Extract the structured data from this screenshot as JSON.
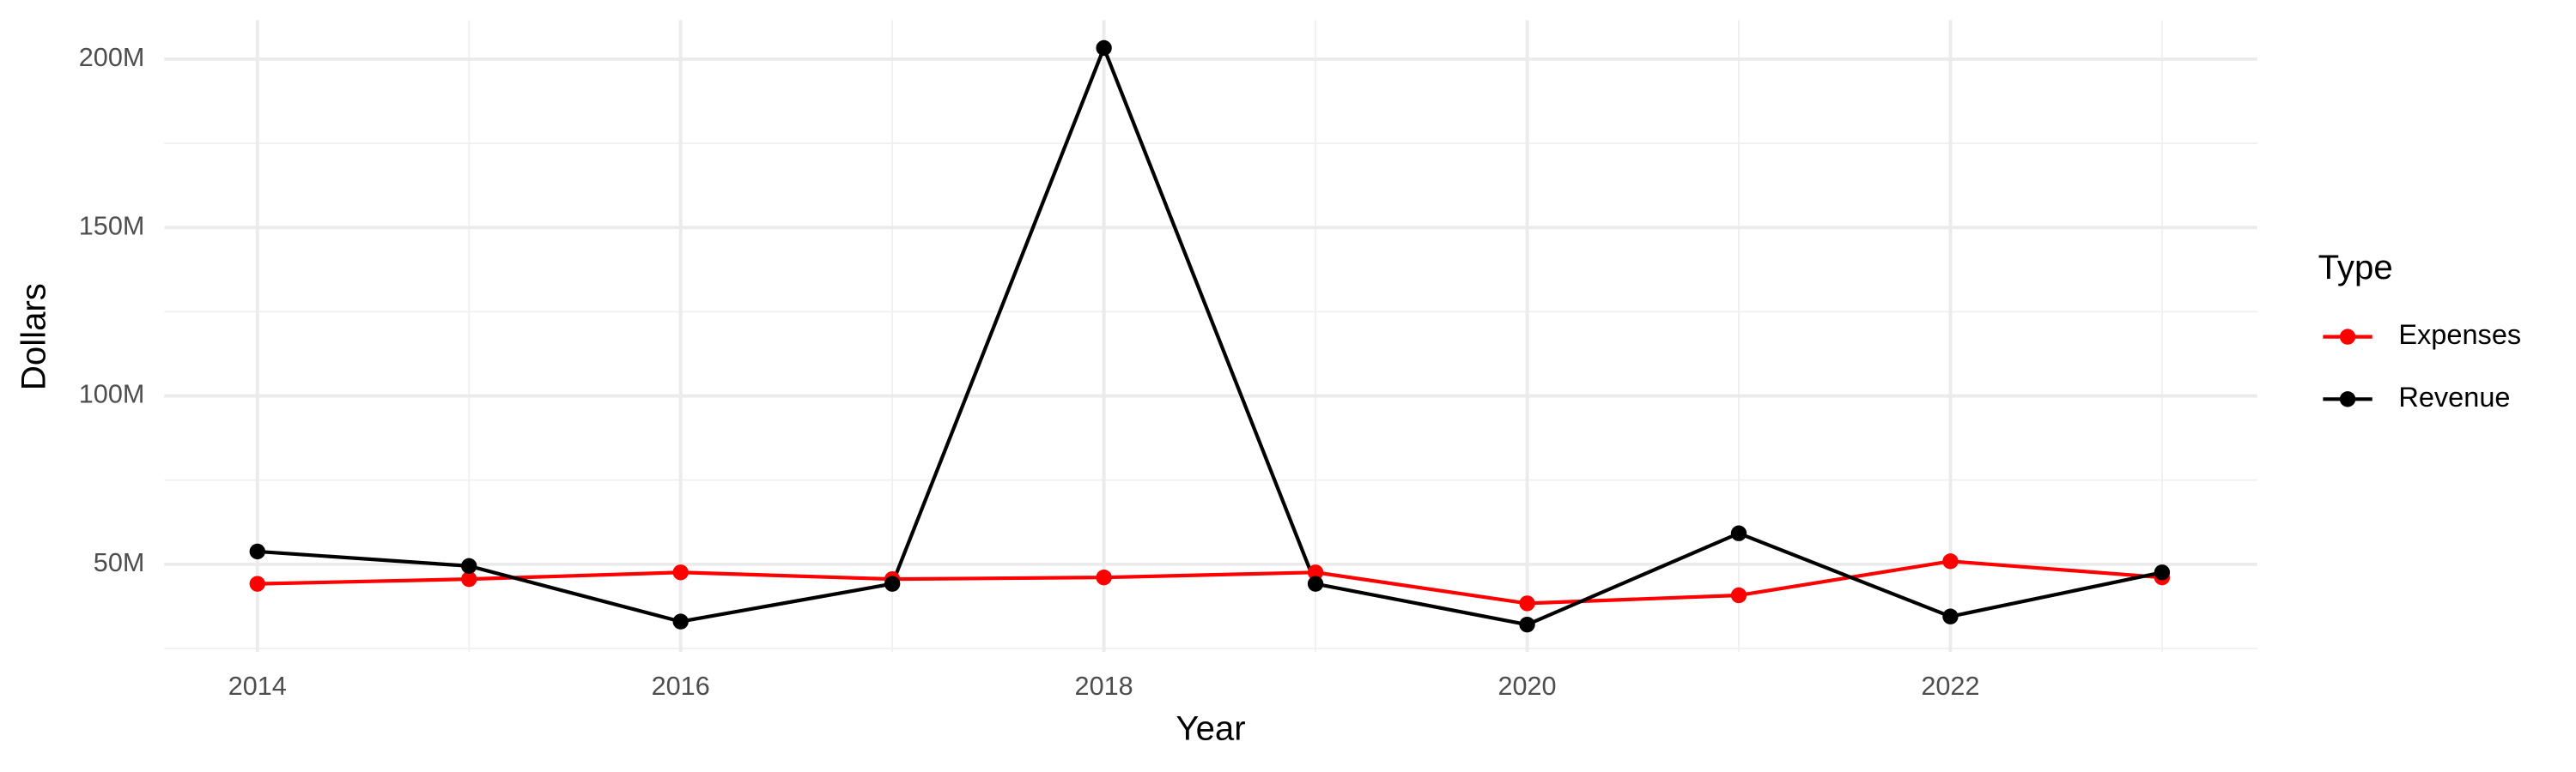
{
  "chart_data": {
    "type": "line",
    "x_label": "Year",
    "y_label": "Dollars",
    "legend_title": "Type",
    "x": [
      2014,
      2015,
      2016,
      2017,
      2018,
      2019,
      2020,
      2021,
      2022,
      2023
    ],
    "series": [
      {
        "name": "Expenses",
        "color": "#ff0000",
        "values": [
          44200000,
          45600000,
          47600000,
          45600000,
          46100000,
          47600000,
          38400000,
          40800000,
          50900000,
          46100000
        ]
      },
      {
        "name": "Revenue",
        "color": "#000000",
        "values": [
          53800000,
          49500000,
          33000000,
          44200000,
          203300000,
          44200000,
          32100000,
          59200000,
          34500000,
          47600000
        ]
      }
    ],
    "xlim": [
      2013.56,
      2023.45
    ],
    "xticks": [
      2014,
      2016,
      2018,
      2020,
      2022
    ],
    "ylim": [
      24000000,
      211600000
    ],
    "yticks": [
      {
        "value": 50000000,
        "label": "50M"
      },
      {
        "value": 100000000,
        "label": "100M"
      },
      {
        "value": 150000000,
        "label": "150M"
      },
      {
        "value": 200000000,
        "label": "200M"
      }
    ],
    "grid": true,
    "legend": "right"
  }
}
